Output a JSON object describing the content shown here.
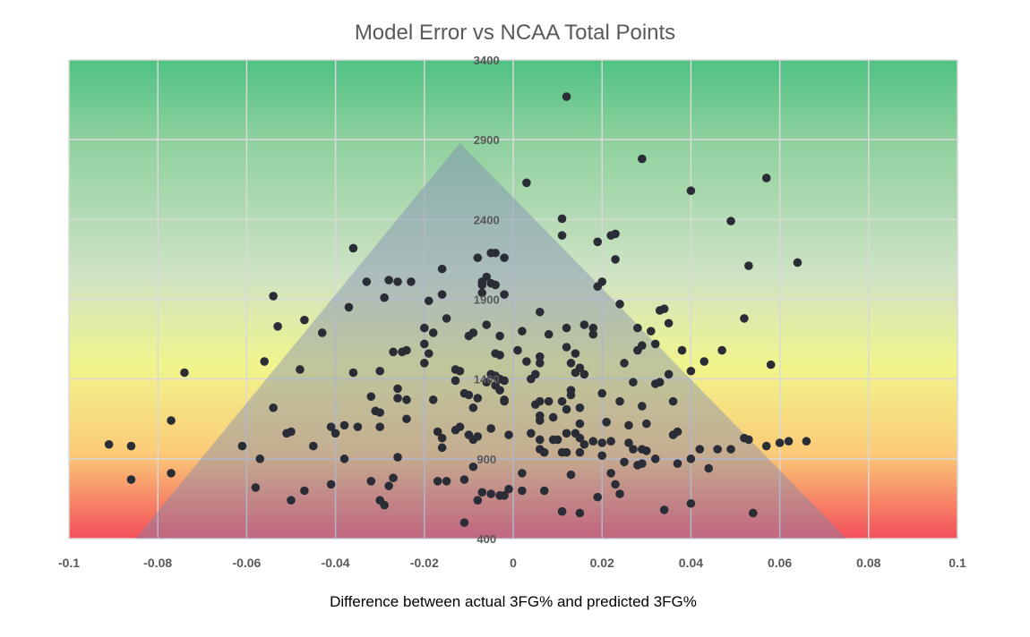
{
  "chart_data": {
    "type": "scatter",
    "title": "Model Error vs NCAA Total Points",
    "xlabel": "Difference between actual 3FG% and predicted 3FG%",
    "ylabel": "",
    "xlim": [
      -0.1,
      0.1
    ],
    "ylim": [
      400,
      3400
    ],
    "x_ticks": [
      "-0.1",
      "-0.08",
      "-0.06",
      "-0.04",
      "-0.02",
      "0",
      "0.02",
      "0.04",
      "0.06",
      "0.08",
      "0.1"
    ],
    "y_ticks": [
      "400",
      "900",
      "1400",
      "1900",
      "2400",
      "2900",
      "3400"
    ],
    "grid": true,
    "legend": "none",
    "background_gradient": "green (top) to yellow to red (bottom)",
    "overlay": {
      "shape": "triangle",
      "vertices": [
        [
          -0.085,
          400
        ],
        [
          -0.012,
          2880
        ],
        [
          0.075,
          400
        ]
      ],
      "color": "#7a86b3"
    },
    "colors": {
      "top": "#4fc282",
      "upper": "#8fd19e",
      "mid_green": "#cfe3c4",
      "yellow": "#f1f58c",
      "orange": "#fbcb78",
      "red": "#f44f5a",
      "marker": "#2a2d36",
      "grid": "#d9d9d9"
    },
    "points": [
      [
        0.012,
        3170
      ],
      [
        0.029,
        2780
      ],
      [
        0.057,
        2660
      ],
      [
        0.003,
        2630
      ],
      [
        0.04,
        2580
      ],
      [
        0.011,
        2405
      ],
      [
        0.049,
        2390
      ],
      [
        0.011,
        2300
      ],
      [
        0.022,
        2300
      ],
      [
        0.023,
        2310
      ],
      [
        0.019,
        2260
      ],
      [
        -0.036,
        2220
      ],
      [
        -0.005,
        2190
      ],
      [
        -0.004,
        2190
      ],
      [
        -0.008,
        2160
      ],
      [
        -0.002,
        2160
      ],
      [
        0.023,
        2150
      ],
      [
        0.064,
        2130
      ],
      [
        0.053,
        2110
      ],
      [
        -0.016,
        2090
      ],
      [
        -0.033,
        2010
      ],
      [
        -0.028,
        2020
      ],
      [
        -0.026,
        2010
      ],
      [
        -0.023,
        2010
      ],
      [
        -0.007,
        2010
      ],
      [
        -0.006,
        2040
      ],
      [
        -0.007,
        1990
      ],
      [
        -0.005,
        2000
      ],
      [
        -0.004,
        1990
      ],
      [
        0.02,
        2010
      ],
      [
        0.019,
        1980
      ],
      [
        -0.054,
        1920
      ],
      [
        -0.029,
        1910
      ],
      [
        -0.016,
        1930
      ],
      [
        -0.019,
        1890
      ],
      [
        -0.002,
        1930
      ],
      [
        -0.007,
        1940
      ],
      [
        -0.037,
        1850
      ],
      [
        -0.053,
        1730
      ],
      [
        -0.047,
        1770
      ],
      [
        -0.043,
        1690
      ],
      [
        -0.015,
        1780
      ],
      [
        -0.01,
        1670
      ],
      [
        -0.009,
        1690
      ],
      [
        -0.006,
        1740
      ],
      [
        -0.02,
        1720
      ],
      [
        -0.018,
        1690
      ],
      [
        -0.02,
        1620
      ],
      [
        0.006,
        1820
      ],
      [
        0.002,
        1700
      ],
      [
        0.008,
        1680
      ],
      [
        0.012,
        1720
      ],
      [
        0.016,
        1740
      ],
      [
        0.018,
        1720
      ],
      [
        0.018,
        1680
      ],
      [
        0.024,
        1870
      ],
      [
        0.028,
        1720
      ],
      [
        0.033,
        1830
      ],
      [
        0.034,
        1840
      ],
      [
        0.031,
        1700
      ],
      [
        0.035,
        1750
      ],
      [
        0.052,
        1780
      ],
      [
        0.032,
        1620
      ],
      [
        0.029,
        1610
      ],
      [
        0.038,
        1580
      ],
      [
        0.047,
        1580
      ],
      [
        0.043,
        1510
      ],
      [
        0.058,
        1490
      ],
      [
        0.04,
        1450
      ],
      [
        0.035,
        1430
      ],
      [
        0.033,
        1380
      ],
      [
        0.032,
        1370
      ],
      [
        0.036,
        1260
      ],
      [
        0.06,
        1000
      ],
      [
        0.062,
        1010
      ],
      [
        0.066,
        1010
      ],
      [
        0.052,
        1030
      ],
      [
        0.053,
        1020
      ],
      [
        0.057,
        980
      ],
      [
        0.049,
        960
      ],
      [
        0.046,
        960
      ],
      [
        0.042,
        960
      ],
      [
        0.037,
        1070
      ],
      [
        0.036,
        1050
      ],
      [
        0.037,
        870
      ],
      [
        0.04,
        900
      ],
      [
        0.044,
        840
      ],
      [
        0.054,
        560
      ],
      [
        0.04,
        620
      ],
      [
        0.034,
        580
      ],
      [
        -0.074,
        1440
      ],
      [
        -0.077,
        1140
      ],
      [
        -0.091,
        990
      ],
      [
        -0.086,
        980
      ],
      [
        -0.086,
        770
      ],
      [
        -0.077,
        810
      ],
      [
        -0.056,
        1510
      ],
      [
        -0.048,
        1460
      ],
      [
        -0.054,
        1220
      ],
      [
        -0.061,
        980
      ],
      [
        -0.057,
        900
      ],
      [
        -0.058,
        720
      ],
      [
        -0.05,
        640
      ],
      [
        -0.047,
        700
      ],
      [
        -0.051,
        1060
      ],
      [
        -0.05,
        1070
      ],
      [
        -0.045,
        980
      ],
      [
        -0.041,
        1100
      ],
      [
        -0.04,
        1060
      ],
      [
        -0.038,
        1110
      ],
      [
        -0.035,
        1100
      ],
      [
        -0.036,
        1440
      ],
      [
        -0.038,
        900
      ],
      [
        -0.041,
        740
      ],
      [
        -0.032,
        1290
      ],
      [
        -0.031,
        1200
      ],
      [
        -0.03,
        1190
      ],
      [
        -0.03,
        1100
      ],
      [
        -0.03,
        1450
      ],
      [
        -0.027,
        1570
      ],
      [
        -0.025,
        1570
      ],
      [
        -0.024,
        1580
      ],
      [
        -0.026,
        1340
      ],
      [
        -0.026,
        1280
      ],
      [
        -0.024,
        1270
      ],
      [
        -0.024,
        1150
      ],
      [
        -0.026,
        910
      ],
      [
        -0.027,
        780
      ],
      [
        -0.028,
        730
      ],
      [
        -0.032,
        760
      ],
      [
        -0.03,
        640
      ],
      [
        -0.029,
        610
      ],
      [
        -0.019,
        1560
      ],
      [
        -0.02,
        1500
      ],
      [
        -0.018,
        1270
      ],
      [
        -0.017,
        1070
      ],
      [
        -0.016,
        1030
      ],
      [
        -0.016,
        970
      ],
      [
        -0.017,
        760
      ],
      [
        -0.015,
        760
      ],
      [
        -0.013,
        1460
      ],
      [
        -0.012,
        1450
      ],
      [
        -0.013,
        1390
      ],
      [
        -0.011,
        1310
      ],
      [
        -0.01,
        1300
      ],
      [
        -0.008,
        1280
      ],
      [
        -0.009,
        1220
      ],
      [
        -0.012,
        1100
      ],
      [
        -0.013,
        1080
      ],
      [
        -0.01,
        1050
      ],
      [
        -0.008,
        1040
      ],
      [
        -0.009,
        1020
      ],
      [
        -0.005,
        1090
      ],
      [
        -0.005,
        1430
      ],
      [
        -0.004,
        1420
      ],
      [
        -0.003,
        1400
      ],
      [
        -0.006,
        1380
      ],
      [
        -0.004,
        1360
      ],
      [
        -0.003,
        1330
      ],
      [
        -0.002,
        1390
      ],
      [
        -0.002,
        1260
      ],
      [
        -0.002,
        1270
      ],
      [
        -0.004,
        1560
      ],
      [
        -0.003,
        1550
      ],
      [
        -0.003,
        1670
      ],
      [
        -0.009,
        850
      ],
      [
        -0.011,
        770
      ],
      [
        -0.007,
        690
      ],
      [
        -0.005,
        680
      ],
      [
        -0.003,
        670
      ],
      [
        -0.002,
        670
      ],
      [
        -0.001,
        710
      ],
      [
        0.002,
        700
      ],
      [
        -0.008,
        640
      ],
      [
        -0.011,
        500
      ],
      [
        -0.001,
        1050
      ],
      [
        0.001,
        1580
      ],
      [
        0.003,
        1510
      ],
      [
        0.006,
        1540
      ],
      [
        0.006,
        1500
      ],
      [
        0.005,
        1430
      ],
      [
        0.004,
        1400
      ],
      [
        0.006,
        1260
      ],
      [
        0.005,
        1240
      ],
      [
        0.006,
        1170
      ],
      [
        0.006,
        1140
      ],
      [
        0.004,
        1060
      ],
      [
        0.006,
        1020
      ],
      [
        0.008,
        1260
      ],
      [
        0.009,
        1160
      ],
      [
        0.009,
        1020
      ],
      [
        0.01,
        1020
      ],
      [
        0.012,
        1060
      ],
      [
        0.011,
        1260
      ],
      [
        0.012,
        1210
      ],
      [
        0.013,
        1300
      ],
      [
        0.013,
        1330
      ],
      [
        0.014,
        1440
      ],
      [
        0.013,
        1500
      ],
      [
        0.012,
        1600
      ],
      [
        0.014,
        1560
      ],
      [
        0.015,
        1470
      ],
      [
        0.016,
        1430
      ],
      [
        0.015,
        1220
      ],
      [
        0.015,
        1120
      ],
      [
        0.014,
        1060
      ],
      [
        0.015,
        1030
      ],
      [
        0.016,
        990
      ],
      [
        0.011,
        940
      ],
      [
        0.012,
        940
      ],
      [
        0.007,
        940
      ],
      [
        0.006,
        960
      ],
      [
        0.015,
        940
      ],
      [
        0.02,
        1310
      ],
      [
        0.021,
        1130
      ],
      [
        0.018,
        1010
      ],
      [
        0.02,
        1000
      ],
      [
        0.022,
        1010
      ],
      [
        0.025,
        1500
      ],
      [
        0.028,
        1580
      ],
      [
        0.027,
        1380
      ],
      [
        0.024,
        1260
      ],
      [
        0.026,
        1110
      ],
      [
        0.029,
        1230
      ],
      [
        0.03,
        1120
      ],
      [
        0.026,
        1000
      ],
      [
        0.02,
        920
      ],
      [
        0.027,
        960
      ],
      [
        0.029,
        960
      ],
      [
        0.03,
        950
      ],
      [
        0.025,
        880
      ],
      [
        0.029,
        870
      ],
      [
        0.028,
        860
      ],
      [
        0.032,
        900
      ],
      [
        0.022,
        810
      ],
      [
        0.023,
        740
      ],
      [
        0.024,
        680
      ],
      [
        0.019,
        660
      ],
      [
        0.015,
        560
      ],
      [
        0.011,
        570
      ],
      [
        0.013,
        800
      ],
      [
        0.007,
        700
      ],
      [
        0.002,
        810
      ]
    ]
  }
}
